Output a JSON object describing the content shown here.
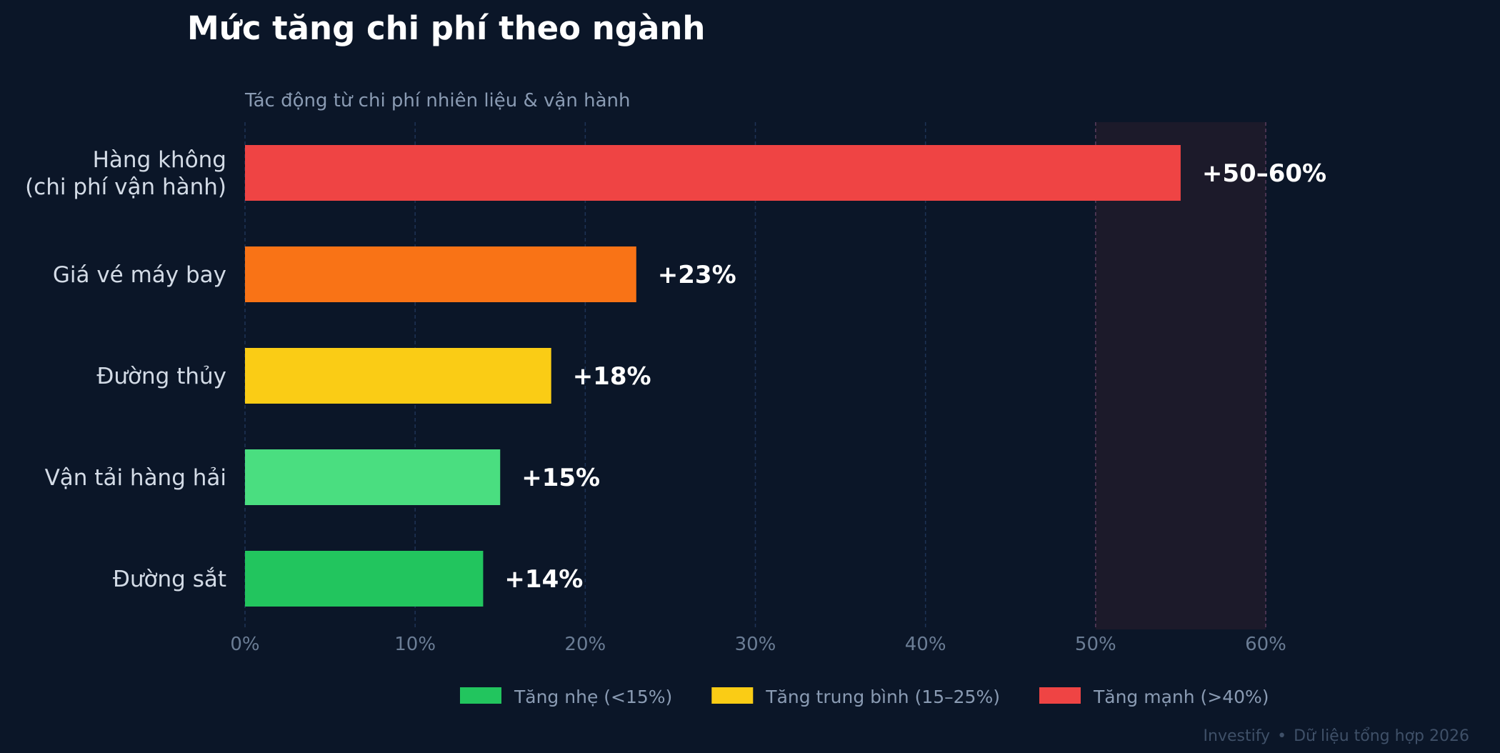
{
  "chart_data": {
    "type": "bar",
    "orientation": "horizontal",
    "title": "Mức tăng chi phí theo ngành",
    "subtitle": "Tác động từ chi phí nhiên liệu & vận hành",
    "categories": [
      "Hàng không\n(chi phí vận hành)",
      "Giá vé máy bay",
      "Đường thủy",
      "Vận tải hàng hải",
      "Đường sắt"
    ],
    "values": [
      55,
      23,
      18,
      15,
      14
    ],
    "data_labels": [
      "+50–60%",
      "+23%",
      "+18%",
      "+15%",
      "+14%"
    ],
    "bar_colors": [
      "#ef4444",
      "#f97316",
      "#facc15",
      "#4ade80",
      "#22c55e"
    ],
    "xlim": [
      0,
      60
    ],
    "x_ticks": [
      "0%",
      "10%",
      "20%",
      "30%",
      "40%",
      "50%",
      "60%"
    ],
    "grid": true,
    "highlight_range": [
      50,
      60
    ],
    "legend_position": "bottom",
    "legend": [
      {
        "label": "Tăng nhẹ (<15%)",
        "color": "#22c55e"
      },
      {
        "label": "Tăng trung bình (15–25%)",
        "color": "#facc15"
      },
      {
        "label": "Tăng mạnh (>40%)",
        "color": "#ef4444"
      }
    ]
  },
  "footer": {
    "brand": "Investify",
    "separator": "•",
    "note": "Dữ liệu tổng hợp 2026"
  },
  "colors": {
    "background": "#0b1628",
    "grid": "#1e3356",
    "highlight": "#1c1a2a"
  }
}
